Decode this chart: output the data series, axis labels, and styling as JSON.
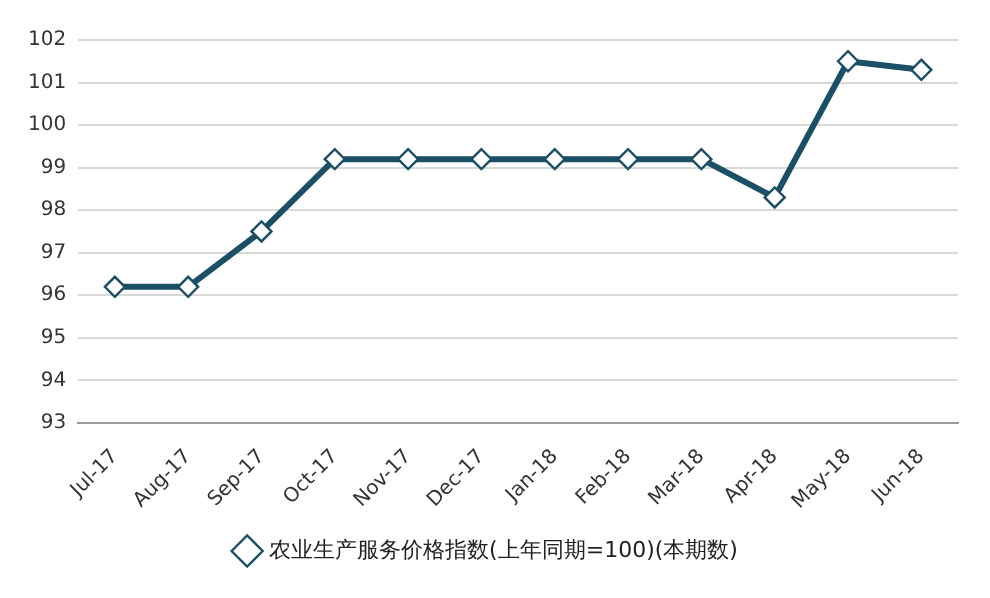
{
  "chart_data": {
    "type": "line",
    "categories": [
      "Jul-17",
      "Aug-17",
      "Sep-17",
      "Oct-17",
      "Nov-17",
      "Dec-17",
      "Jan-18",
      "Feb-18",
      "Mar-18",
      "Apr-18",
      "May-18",
      "Jun-18"
    ],
    "series": [
      {
        "name": "农业生产服务价格指数(上年同期=100)(本期数)",
        "color": "#1b4f66",
        "values": [
          96.2,
          96.2,
          97.5,
          99.2,
          99.2,
          99.2,
          99.2,
          99.2,
          99.2,
          98.3,
          101.5,
          101.3
        ]
      }
    ],
    "ylim": [
      93,
      102
    ],
    "yticks": [
      93,
      94,
      95,
      96,
      97,
      98,
      99,
      100,
      101,
      102
    ],
    "grid": "y",
    "legend": "bottom",
    "marker": "diamond",
    "line_style": "solid"
  }
}
